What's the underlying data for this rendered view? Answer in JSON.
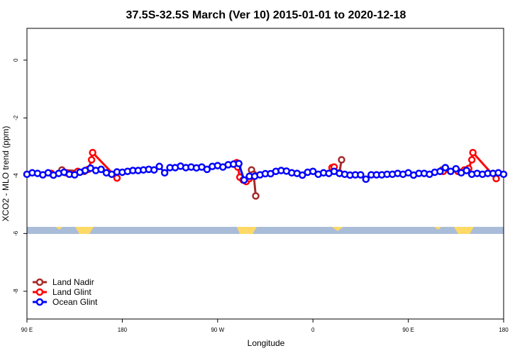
{
  "chart_data": {
    "type": "line",
    "title": "37.5S-32.5S March (Ver 10)   2015-01-01 to 2020-12-18",
    "x_label": "Longitude",
    "y_label": "XCO2 - MLO trend (ppm)",
    "xlim": [
      90,
      540
    ],
    "xticks": [
      {
        "value": 90,
        "label": "90 E"
      },
      {
        "value": 180,
        "label": "180"
      },
      {
        "value": 270,
        "label": "90 W"
      },
      {
        "value": 360,
        "label": "0"
      },
      {
        "value": 450,
        "label": "90 E"
      },
      {
        "value": 540,
        "label": "180"
      }
    ],
    "ylim": [
      -8.96,
      1.1
    ],
    "yticks": [
      0,
      -2,
      -4,
      -6,
      -8
    ],
    "legend": "bottom-left",
    "series": [
      {
        "name": "Land Nadir",
        "color": "#a52a2a",
        "x": [
          123,
          144,
          null,
          302,
          304,
          306,
          null,
          385,
          387,
          null,
          482
        ],
        "values": [
          -3.8,
          -3.85,
          null,
          -3.8,
          -3.95,
          -4.7,
          null,
          -3.9,
          -3.45,
          null,
          -3.8
        ]
      },
      {
        "name": "Land Glint",
        "color": "#ff0000",
        "x": [
          113,
          127,
          138,
          148,
          151,
          152,
          175,
          null,
          288,
          289,
          291,
          294,
          297,
          300,
          null,
          378,
          380,
          null,
          483,
          497,
          503,
          507,
          510,
          511,
          533
        ],
        "values": [
          -3.92,
          -3.9,
          -3.85,
          -3.78,
          -3.45,
          -3.2,
          -4.08,
          null,
          -3.55,
          -3.7,
          -4.05,
          -4.15,
          -4.2,
          -4.1,
          null,
          -3.72,
          -3.7,
          null,
          -3.85,
          -3.85,
          -3.8,
          -3.75,
          -3.45,
          -3.2,
          -4.1
        ]
      },
      {
        "name": "Ocean Glint",
        "color": "#0000ff",
        "x": [
          90,
          95,
          100,
          105,
          110,
          115,
          120,
          125,
          130,
          135,
          140,
          145,
          150,
          155,
          160,
          165,
          170,
          175,
          180,
          185,
          190,
          195,
          200,
          205,
          210,
          215,
          220,
          225,
          230,
          235,
          240,
          245,
          250,
          255,
          260,
          265,
          270,
          275,
          280,
          285,
          290,
          295,
          300,
          305,
          310,
          315,
          320,
          325,
          330,
          335,
          340,
          345,
          350,
          355,
          360,
          365,
          370,
          375,
          380,
          385,
          390,
          395,
          400,
          405,
          410,
          415,
          420,
          425,
          430,
          435,
          440,
          445,
          450,
          455,
          460,
          465,
          470,
          475,
          480,
          485,
          490,
          495,
          500,
          505,
          510,
          515,
          520,
          525,
          530,
          535,
          540
        ],
        "values": [
          -3.95,
          -3.9,
          -3.92,
          -3.97,
          -3.9,
          -3.98,
          -3.92,
          -3.88,
          -3.95,
          -3.97,
          -3.88,
          -3.82,
          -3.74,
          -3.82,
          -3.78,
          -3.9,
          -3.95,
          -3.87,
          -3.88,
          -3.85,
          -3.82,
          -3.82,
          -3.8,
          -3.78,
          -3.8,
          -3.68,
          -3.9,
          -3.72,
          -3.72,
          -3.67,
          -3.72,
          -3.7,
          -3.73,
          -3.7,
          -3.78,
          -3.68,
          -3.65,
          -3.7,
          -3.62,
          -3.6,
          -3.58,
          -4.15,
          -4.02,
          -4.02,
          -3.97,
          -3.93,
          -3.93,
          -3.85,
          -3.82,
          -3.84,
          -3.9,
          -3.92,
          -3.98,
          -3.88,
          -3.85,
          -3.95,
          -3.9,
          -3.92,
          -3.85,
          -3.92,
          -3.95,
          -3.98,
          -3.97,
          -3.97,
          -4.12,
          -3.97,
          -3.97,
          -3.97,
          -3.95,
          -3.95,
          -3.92,
          -3.95,
          -3.9,
          -3.98,
          -3.92,
          -3.92,
          -3.95,
          -3.88,
          -3.85,
          -3.72,
          -3.85,
          -3.76,
          -3.9,
          -3.82,
          -3.95,
          -3.92,
          -3.95,
          -3.92,
          -3.92,
          -3.9,
          -3.95
        ]
      }
    ]
  }
}
